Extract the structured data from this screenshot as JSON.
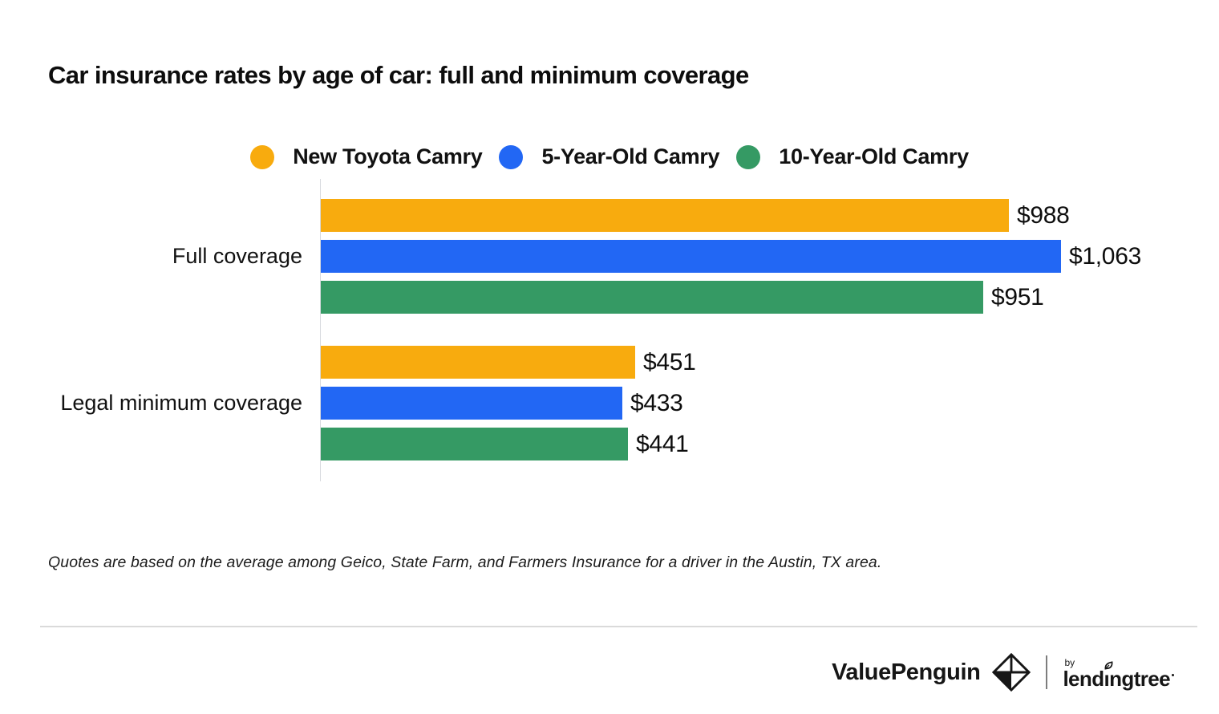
{
  "title": "Car insurance rates by age of car: full and minimum coverage",
  "legend": [
    {
      "label": "New Toyota Camry",
      "color": "#F8AB0E"
    },
    {
      "label": "5-Year-Old Camry",
      "color": "#2267F4"
    },
    {
      "label": "10-Year-Old Camry",
      "color": "#359A64"
    }
  ],
  "chart_data": {
    "type": "bar",
    "orientation": "horizontal",
    "title": "Car insurance rates by age of car: full and minimum coverage",
    "categories": [
      "Full coverage",
      "Legal minimum coverage"
    ],
    "series": [
      {
        "name": "New Toyota Camry",
        "color": "#F8AB0E",
        "values": [
          988,
          451
        ],
        "labels": [
          "$988",
          "$451"
        ]
      },
      {
        "name": "5-Year-Old Camry",
        "color": "#2267F4",
        "values": [
          1063,
          433
        ],
        "labels": [
          "$1,063",
          "$433"
        ]
      },
      {
        "name": "10-Year-Old Camry",
        "color": "#359A64",
        "values": [
          951,
          441
        ],
        "labels": [
          "$951",
          "$441"
        ]
      }
    ],
    "xlabel": "",
    "ylabel": "",
    "xlim": [
      0,
      1063
    ],
    "grid": false,
    "legend_position": "top",
    "axis_line_color": "#d8dade"
  },
  "footnote": "Quotes are based on the average among Geico, State Farm, and Farmers Insurance for a driver in the Austin, TX area.",
  "footer": {
    "brand": "ValuePenguin",
    "by_label": "by",
    "partner": "lendingtree"
  }
}
